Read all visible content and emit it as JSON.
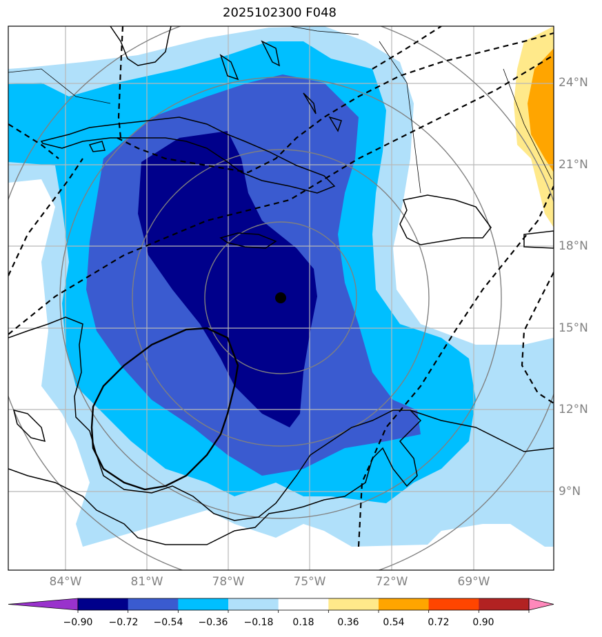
{
  "title": "2025102300 F048",
  "lat_labels": [
    "24°N",
    "21°N",
    "18°N",
    "15°N",
    "12°N",
    "9°N"
  ],
  "lon_labels": [
    "84°W",
    "81°W",
    "78°W",
    "75°W",
    "72°W",
    "69°W"
  ],
  "colorbar": {
    "ticks": [
      "−0.90",
      "−0.72",
      "−0.54",
      "−0.36",
      "−0.18",
      "0.18",
      "0.36",
      "0.54",
      "0.72",
      "0.90"
    ],
    "colors": [
      "#9932cc",
      "#00008b",
      "#3a5bd0",
      "#00bfff",
      "#b0e0fa",
      "#ffffff",
      "#ffe98a",
      "#ffa500",
      "#ff4500",
      "#b22222",
      "#ff88bb"
    ]
  },
  "center_marker": {
    "lat": 16.1,
    "lon": -76.0
  },
  "colors": {
    "land_outline": "#000000",
    "grid": "#b8b8b8",
    "range_rings": "#808080"
  }
}
